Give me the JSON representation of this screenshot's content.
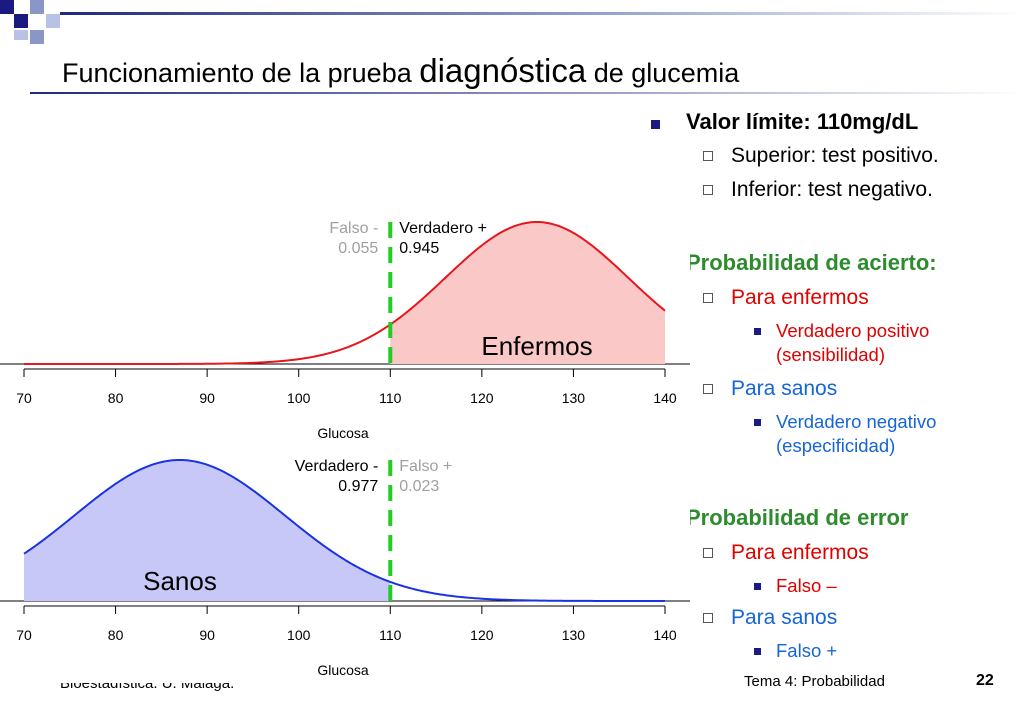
{
  "slide": {
    "title_prefix": "Funcionamiento de la prueba ",
    "title_emphasis": "diagnóstica",
    "title_suffix": " de glucemia",
    "accent_color": "#1a1a80"
  },
  "bullets": {
    "threshold": "Valor límite: 110mg/dL",
    "threshold_upper": "Superior: test positivo.",
    "threshold_lower": "Inferior: test negativo.",
    "success_heading": "Probabilidad de acierto:",
    "success_sick": "Para enfermos",
    "true_positive_1": "Verdadero positivo",
    "true_positive_2": "(sensibilidad)",
    "success_healthy": "Para sanos",
    "true_negative_1": "Verdadero negativo",
    "true_negative_2": "(especificidad)",
    "error_heading": "Probabilidad de error",
    "error_sick": "Para enfermos",
    "false_neg": "Falso –",
    "error_healthy": "Para sanos",
    "false_pos": "Falso +"
  },
  "footer": {
    "left": "Bioestadística. U. Málaga.",
    "center": "Tema 4: Probabilidad",
    "page": "22"
  },
  "chart_data": [
    {
      "type": "area",
      "xlabel": "Glucosa",
      "xlim": [
        70,
        140
      ],
      "x_ticks": [
        70,
        80,
        90,
        100,
        110,
        120,
        130,
        140
      ],
      "threshold": 110,
      "distribution": {
        "mean": 126,
        "sd": 10
      },
      "shaded_from": 110,
      "group_label": "Enfermos",
      "left_annotation": {
        "label": "Falso -",
        "value": "0.055"
      },
      "right_annotation": {
        "label": "Verdadero +",
        "value": "0.945"
      },
      "line_color": "#e8161b",
      "fill_color": "#fbc8c8",
      "threshold_color": "#22cc22"
    },
    {
      "type": "area",
      "xlabel": "Glucosa",
      "xlim": [
        70,
        140
      ],
      "x_ticks": [
        70,
        80,
        90,
        100,
        110,
        120,
        130,
        140
      ],
      "threshold": 110,
      "distribution": {
        "mean": 87,
        "sd": 11.5
      },
      "shaded_to": 110,
      "group_label": "Sanos",
      "left_annotation": {
        "label": "Verdadero -",
        "value": "0.977"
      },
      "right_annotation": {
        "label": "Falso +",
        "value": "0.023"
      },
      "line_color": "#1a33e0",
      "fill_color": "#c8c8f8",
      "threshold_color": "#22cc22"
    }
  ]
}
